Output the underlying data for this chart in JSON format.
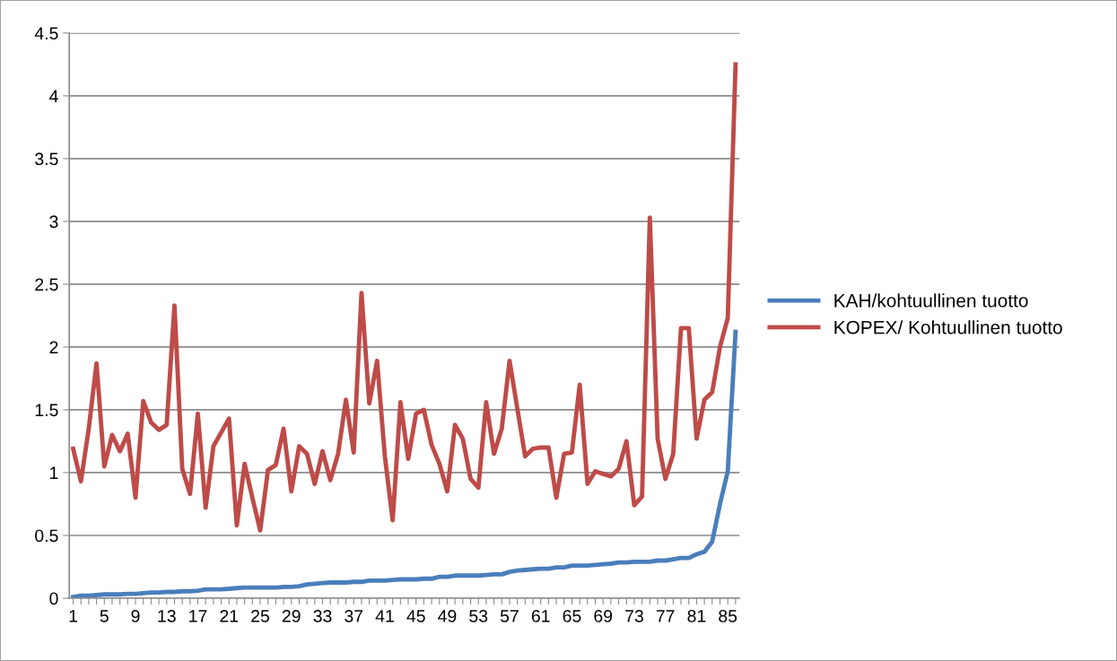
{
  "chart_data": {
    "type": "line",
    "categories": [
      "1",
      null,
      null,
      null,
      "5",
      null,
      null,
      null,
      "9",
      null,
      null,
      null,
      "13",
      null,
      null,
      null,
      "17",
      null,
      null,
      null,
      "21",
      null,
      null,
      null,
      "25",
      null,
      null,
      null,
      "29",
      null,
      null,
      null,
      "33",
      null,
      null,
      null,
      "37",
      null,
      null,
      null,
      "41",
      null,
      null,
      null,
      "45",
      null,
      null,
      null,
      "49",
      null,
      null,
      null,
      "53",
      null,
      null,
      null,
      "57",
      null,
      null,
      null,
      "61",
      null,
      null,
      null,
      "65",
      null,
      null,
      null,
      "69",
      null,
      null,
      null,
      "73",
      null,
      null,
      null,
      "77",
      null,
      null,
      null,
      "81",
      null,
      null,
      null,
      "85",
      null
    ],
    "series": [
      {
        "name": "KAH/kohtuullinen tuotto",
        "color": "#4a7ebb",
        "values": [
          0.01,
          0.02,
          0.02,
          0.025,
          0.03,
          0.03,
          0.03,
          0.035,
          0.035,
          0.04,
          0.045,
          0.045,
          0.05,
          0.05,
          0.055,
          0.055,
          0.06,
          0.07,
          0.07,
          0.07,
          0.075,
          0.08,
          0.085,
          0.085,
          0.085,
          0.085,
          0.085,
          0.09,
          0.09,
          0.095,
          0.11,
          0.115,
          0.12,
          0.125,
          0.125,
          0.125,
          0.13,
          0.13,
          0.14,
          0.14,
          0.14,
          0.145,
          0.15,
          0.15,
          0.15,
          0.155,
          0.155,
          0.17,
          0.17,
          0.18,
          0.18,
          0.18,
          0.18,
          0.185,
          0.19,
          0.19,
          0.21,
          0.22,
          0.225,
          0.23,
          0.235,
          0.235,
          0.245,
          0.245,
          0.26,
          0.26,
          0.26,
          0.265,
          0.27,
          0.275,
          0.285,
          0.285,
          0.29,
          0.29,
          0.29,
          0.3,
          0.3,
          0.31,
          0.32,
          0.32,
          0.35,
          0.37,
          0.45,
          0.75,
          1.01,
          2.12
        ]
      },
      {
        "name": "KOPEX/ Kohtuullinen tuotto",
        "color": "#be4b48",
        "values": [
          1.19,
          0.93,
          1.35,
          1.87,
          1.05,
          1.3,
          1.17,
          1.31,
          0.8,
          1.57,
          1.4,
          1.34,
          1.38,
          2.33,
          1.03,
          0.83,
          1.47,
          0.72,
          1.21,
          1.32,
          1.43,
          0.58,
          1.07,
          0.8,
          0.54,
          1.02,
          1.06,
          1.35,
          0.85,
          1.21,
          1.15,
          0.91,
          1.17,
          0.94,
          1.15,
          1.58,
          1.16,
          2.43,
          1.55,
          1.89,
          1.13,
          0.62,
          1.56,
          1.11,
          1.47,
          1.5,
          1.22,
          1.07,
          0.85,
          1.38,
          1.27,
          0.95,
          0.88,
          1.56,
          1.15,
          1.35,
          1.89,
          1.51,
          1.13,
          1.19,
          1.2,
          1.2,
          0.8,
          1.15,
          1.16,
          1.7,
          0.91,
          1.01,
          0.99,
          0.97,
          1.03,
          1.25,
          0.74,
          0.81,
          3.03,
          1.27,
          0.95,
          1.15,
          2.15,
          2.15,
          1.27,
          1.58,
          1.64,
          2.0,
          2.23,
          4.25
        ]
      }
    ],
    "ylim": [
      0,
      4.5
    ],
    "yticks": [
      0,
      0.5,
      1,
      1.5,
      2,
      2.5,
      3,
      3.5,
      4,
      4.5
    ],
    "grid": "y",
    "legend": "right",
    "marker": "none",
    "line_style": "solid"
  }
}
